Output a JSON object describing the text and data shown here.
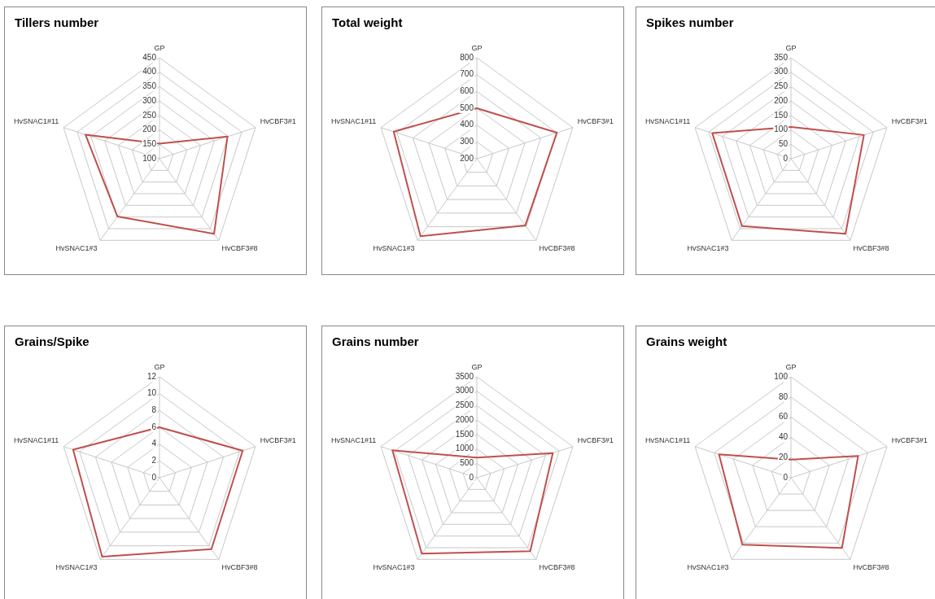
{
  "chart_data": [
    {
      "type": "radar",
      "title": "Tillers number",
      "categories": [
        "GP",
        "HvCBF3#1",
        "HvCBF3#8",
        "HvSNAC1#3",
        "HvSNAC1#11"
      ],
      "ylim": [
        100,
        450
      ],
      "yticks": [
        100,
        150,
        200,
        250,
        300,
        350,
        400,
        450
      ],
      "grid": true,
      "marker": "none",
      "series": [
        {
          "color": "#c0504d",
          "values": [
            152,
            348,
            422,
            348,
            370
          ]
        }
      ]
    },
    {
      "type": "radar",
      "title": "Total weight",
      "categories": [
        "GP",
        "HvCBF3#1",
        "HvCBF3#8",
        "HvSNAC1#3",
        "HvSNAC1#11"
      ],
      "ylim": [
        200,
        800
      ],
      "yticks": [
        200,
        300,
        400,
        500,
        600,
        700,
        800
      ],
      "grid": true,
      "marker": "none",
      "series": [
        {
          "color": "#c0504d",
          "values": [
            500,
            700,
            690,
            770,
            720
          ]
        }
      ]
    },
    {
      "type": "radar",
      "title": "Spikes number",
      "categories": [
        "GP",
        "HvCBF3#1",
        "HvCBF3#8",
        "HvSNAC1#3",
        "HvSNAC1#11"
      ],
      "ylim": [
        0,
        350
      ],
      "yticks": [
        0,
        50,
        100,
        150,
        200,
        250,
        300,
        350
      ],
      "grid": true,
      "marker": "none",
      "series": [
        {
          "color": "#c0504d",
          "values": [
            110,
            266,
            322,
            289,
            287
          ]
        }
      ]
    },
    {
      "type": "radar",
      "title": "Grains/Spike",
      "categories": [
        "GP",
        "HvCBF3#1",
        "HvCBF3#8",
        "HvSNAC1#3",
        "HvSNAC1#11"
      ],
      "ylim": [
        0,
        12
      ],
      "yticks": [
        0,
        2,
        4,
        6,
        8,
        10,
        12
      ],
      "grid": true,
      "marker": "none",
      "series": [
        {
          "color": "#c0504d",
          "values": [
            6,
            10.4,
            10.5,
            11.6,
            10.8
          ]
        }
      ]
    },
    {
      "type": "radar",
      "title": "Grains number",
      "categories": [
        "GP",
        "HvCBF3#1",
        "HvCBF3#8",
        "HvSNAC1#3",
        "HvSNAC1#11"
      ],
      "ylim": [
        0,
        3500
      ],
      "yticks": [
        0,
        500,
        1000,
        1500,
        2000,
        2500,
        3000,
        3500
      ],
      "grid": true,
      "marker": "none",
      "series": [
        {
          "color": "#c0504d",
          "values": [
            700,
            2770,
            3150,
            3250,
            3080
          ]
        }
      ]
    },
    {
      "type": "radar",
      "title": "Grains weight",
      "categories": [
        "GP",
        "HvCBF3#1",
        "HvCBF3#8",
        "HvSNAC1#3",
        "HvSNAC1#11"
      ],
      "ylim": [
        0,
        100
      ],
      "yticks": [
        0,
        20,
        40,
        60,
        80,
        100
      ],
      "grid": true,
      "marker": "none",
      "series": [
        {
          "color": "#c0504d",
          "values": [
            18,
            70,
            86,
            82,
            75
          ]
        }
      ]
    }
  ]
}
